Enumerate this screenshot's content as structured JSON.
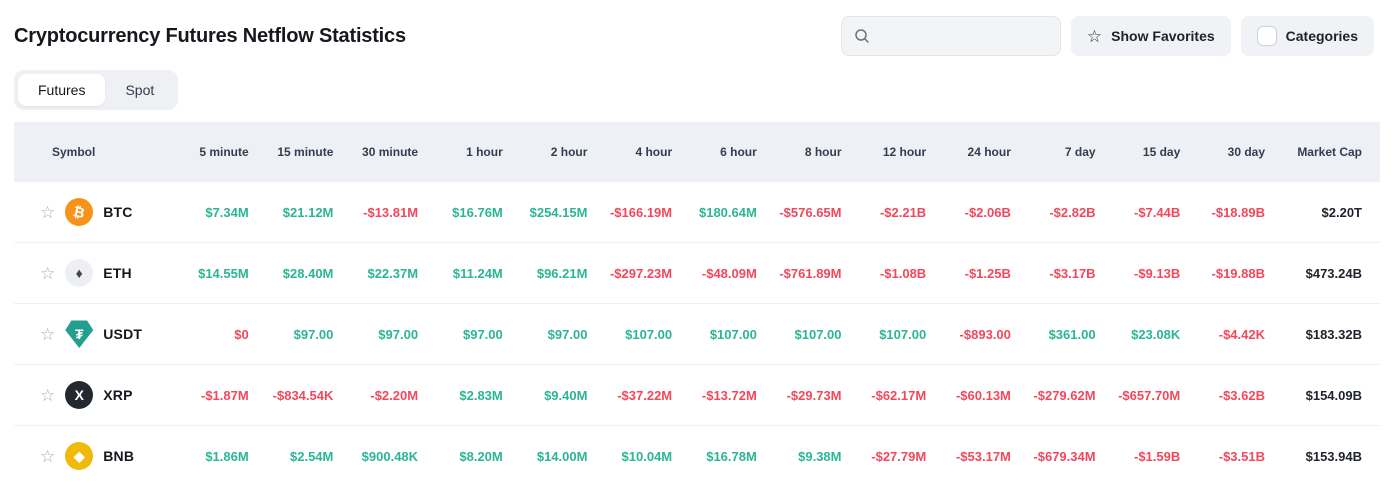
{
  "page": {
    "title": "Cryptocurrency Futures Netflow Statistics"
  },
  "toolbar": {
    "search": {
      "placeholder": "",
      "value": ""
    },
    "show_favorites_label": "Show Favorites",
    "categories_label": "Categories",
    "categories_checked": false
  },
  "tabs": [
    {
      "label": "Futures",
      "active": true
    },
    {
      "label": "Spot",
      "active": false
    }
  ],
  "icons": {
    "favorite_glyph": "☆"
  },
  "colors": {
    "positive": "#2cb595",
    "negative": "#f1485c",
    "btc": "#f7931a",
    "eth_bg": "#edeff3",
    "usdt": "#239e8f",
    "xrp": "#23292f",
    "bnb": "#f0b90b"
  },
  "table": {
    "columns": [
      "Symbol",
      "5 minute",
      "15 minute",
      "30 minute",
      "1 hour",
      "2 hour",
      "4 hour",
      "6 hour",
      "8 hour",
      "12 hour",
      "24 hour",
      "7 day",
      "15 day",
      "30 day",
      "Market Cap"
    ],
    "rows": [
      {
        "symbol": "BTC",
        "icon": {
          "name": "btc-coin-icon",
          "glyph": "₿",
          "bg": "#f7931a",
          "fg": "#ffffff",
          "shape": "circle",
          "rotate": true
        },
        "favorited": false,
        "cells": [
          {
            "text": "$7.34M",
            "tone": "positive"
          },
          {
            "text": "$21.12M",
            "tone": "positive"
          },
          {
            "text": "-$13.81M",
            "tone": "negative"
          },
          {
            "text": "$16.76M",
            "tone": "positive"
          },
          {
            "text": "$254.15M",
            "tone": "positive"
          },
          {
            "text": "-$166.19M",
            "tone": "negative"
          },
          {
            "text": "$180.64M",
            "tone": "positive"
          },
          {
            "text": "-$576.65M",
            "tone": "negative"
          },
          {
            "text": "-$2.21B",
            "tone": "negative"
          },
          {
            "text": "-$2.06B",
            "tone": "negative"
          },
          {
            "text": "-$2.82B",
            "tone": "negative"
          },
          {
            "text": "-$7.44B",
            "tone": "negative"
          },
          {
            "text": "-$18.89B",
            "tone": "negative"
          }
        ],
        "market_cap": "$2.20T"
      },
      {
        "symbol": "ETH",
        "icon": {
          "name": "eth-coin-icon",
          "glyph": "♦",
          "bg": "#edeff3",
          "fg": "#41464f",
          "shape": "circle",
          "rotate": false
        },
        "favorited": false,
        "cells": [
          {
            "text": "$14.55M",
            "tone": "positive"
          },
          {
            "text": "$28.40M",
            "tone": "positive"
          },
          {
            "text": "$22.37M",
            "tone": "positive"
          },
          {
            "text": "$11.24M",
            "tone": "positive"
          },
          {
            "text": "$96.21M",
            "tone": "positive"
          },
          {
            "text": "-$297.23M",
            "tone": "negative"
          },
          {
            "text": "-$48.09M",
            "tone": "negative"
          },
          {
            "text": "-$761.89M",
            "tone": "negative"
          },
          {
            "text": "-$1.08B",
            "tone": "negative"
          },
          {
            "text": "-$1.25B",
            "tone": "negative"
          },
          {
            "text": "-$3.17B",
            "tone": "negative"
          },
          {
            "text": "-$9.13B",
            "tone": "negative"
          },
          {
            "text": "-$19.88B",
            "tone": "negative"
          }
        ],
        "market_cap": "$473.24B"
      },
      {
        "symbol": "USDT",
        "icon": {
          "name": "usdt-coin-icon",
          "glyph": "₮",
          "bg": "#239e8f",
          "fg": "#ffffff",
          "shape": "shield",
          "rotate": false
        },
        "favorited": false,
        "cells": [
          {
            "text": "$0",
            "tone": "negative"
          },
          {
            "text": "$97.00",
            "tone": "positive"
          },
          {
            "text": "$97.00",
            "tone": "positive"
          },
          {
            "text": "$97.00",
            "tone": "positive"
          },
          {
            "text": "$97.00",
            "tone": "positive"
          },
          {
            "text": "$107.00",
            "tone": "positive"
          },
          {
            "text": "$107.00",
            "tone": "positive"
          },
          {
            "text": "$107.00",
            "tone": "positive"
          },
          {
            "text": "$107.00",
            "tone": "positive"
          },
          {
            "text": "-$893.00",
            "tone": "negative"
          },
          {
            "text": "$361.00",
            "tone": "positive"
          },
          {
            "text": "$23.08K",
            "tone": "positive"
          },
          {
            "text": "-$4.42K",
            "tone": "negative"
          }
        ],
        "market_cap": "$183.32B"
      },
      {
        "symbol": "XRP",
        "icon": {
          "name": "xrp-coin-icon",
          "glyph": "X",
          "bg": "#23292f",
          "fg": "#ffffff",
          "shape": "circle",
          "rotate": false
        },
        "favorited": false,
        "cells": [
          {
            "text": "-$1.87M",
            "tone": "negative"
          },
          {
            "text": "-$834.54K",
            "tone": "negative"
          },
          {
            "text": "-$2.20M",
            "tone": "negative"
          },
          {
            "text": "$2.83M",
            "tone": "positive"
          },
          {
            "text": "$9.40M",
            "tone": "positive"
          },
          {
            "text": "-$37.22M",
            "tone": "negative"
          },
          {
            "text": "-$13.72M",
            "tone": "negative"
          },
          {
            "text": "-$29.73M",
            "tone": "negative"
          },
          {
            "text": "-$62.17M",
            "tone": "negative"
          },
          {
            "text": "-$60.13M",
            "tone": "negative"
          },
          {
            "text": "-$279.62M",
            "tone": "negative"
          },
          {
            "text": "-$657.70M",
            "tone": "negative"
          },
          {
            "text": "-$3.62B",
            "tone": "negative"
          }
        ],
        "market_cap": "$154.09B"
      },
      {
        "symbol": "BNB",
        "icon": {
          "name": "bnb-coin-icon",
          "glyph": "◆",
          "bg": "#f0b90b",
          "fg": "#ffffff",
          "shape": "circle",
          "rotate": false
        },
        "favorited": false,
        "cells": [
          {
            "text": "$1.86M",
            "tone": "positive"
          },
          {
            "text": "$2.54M",
            "tone": "positive"
          },
          {
            "text": "$900.48K",
            "tone": "positive"
          },
          {
            "text": "$8.20M",
            "tone": "positive"
          },
          {
            "text": "$14.00M",
            "tone": "positive"
          },
          {
            "text": "$10.04M",
            "tone": "positive"
          },
          {
            "text": "$16.78M",
            "tone": "positive"
          },
          {
            "text": "$9.38M",
            "tone": "positive"
          },
          {
            "text": "-$27.79M",
            "tone": "negative"
          },
          {
            "text": "-$53.17M",
            "tone": "negative"
          },
          {
            "text": "-$679.34M",
            "tone": "negative"
          },
          {
            "text": "-$1.59B",
            "tone": "negative"
          },
          {
            "text": "-$3.51B",
            "tone": "negative"
          }
        ],
        "market_cap": "$153.94B"
      }
    ]
  }
}
